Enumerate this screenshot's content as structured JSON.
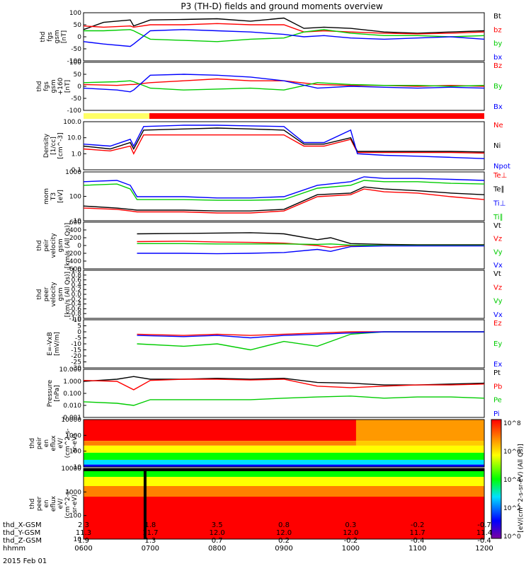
{
  "title": "P3 (TH-D) fields and ground moments overview",
  "colors": {
    "black": "#000000",
    "red": "#ff0000",
    "green": "#00cc00",
    "blue": "#0000ff",
    "yellow": "#ffff66",
    "axis": "#000000"
  },
  "chart_data": [
    {
      "type": "line",
      "id": "fgs",
      "ylabel": [
        "thd",
        "fgs",
        "gsm",
        "[nT]"
      ],
      "ylim": [
        -100,
        100
      ],
      "ticks": [
        "100",
        "50",
        "0",
        "-50",
        "-100"
      ],
      "series": [
        {
          "name": "Bt",
          "color": "#000000",
          "x": [
            0.0,
            0.3,
            0.7,
            0.75,
            1.0,
            1.5,
            2.0,
            2.5,
            3.0,
            3.3,
            3.6,
            4.0,
            4.5,
            5.0,
            5.5,
            6.0
          ],
          "y": [
            30,
            60,
            70,
            45,
            70,
            72,
            75,
            65,
            78,
            35,
            40,
            35,
            20,
            15,
            20,
            25
          ]
        },
        {
          "name": "bz",
          "color": "#ff0000",
          "x": [
            0.0,
            0.3,
            0.7,
            0.75,
            1.0,
            1.5,
            2.0,
            2.5,
            3.0,
            3.3,
            3.6,
            4.0,
            4.5,
            5.0,
            5.5,
            6.0
          ],
          "y": [
            45,
            40,
            45,
            40,
            50,
            50,
            55,
            50,
            50,
            20,
            25,
            20,
            15,
            12,
            15,
            20
          ]
        },
        {
          "name": "by",
          "color": "#00cc00",
          "x": [
            0.0,
            0.3,
            0.7,
            0.75,
            1.0,
            1.5,
            2.0,
            2.5,
            3.0,
            3.3,
            3.6,
            4.0,
            4.5,
            5.0,
            5.5,
            6.0
          ],
          "y": [
            25,
            25,
            30,
            25,
            -10,
            -15,
            -20,
            -10,
            -5,
            20,
            30,
            15,
            5,
            5,
            0,
            5
          ]
        },
        {
          "name": "bx",
          "color": "#0000ff",
          "x": [
            0.0,
            0.3,
            0.7,
            0.75,
            1.0,
            1.5,
            2.0,
            2.5,
            3.0,
            3.3,
            3.6,
            4.0,
            4.5,
            5.0,
            5.5,
            6.0
          ],
          "y": [
            -20,
            -30,
            -40,
            -30,
            25,
            30,
            25,
            20,
            10,
            0,
            5,
            -5,
            -10,
            -5,
            0,
            -10
          ]
        }
      ]
    },
    {
      "type": "line",
      "id": "fgs-lo",
      "ylabel": [
        "thd",
        "fgs",
        "gsm",
        "+160",
        "[nT]"
      ],
      "ylim": [
        -130,
        130
      ],
      "ticks": [
        "100",
        "50",
        "0",
        "-50",
        "-100"
      ],
      "series": [
        {
          "name": "Bz",
          "color": "#ff0000",
          "x": [
            0.0,
            0.5,
            0.7,
            0.75,
            1.0,
            1.5,
            2.0,
            2.5,
            3.0,
            3.5,
            4.0,
            4.5,
            5.0,
            5.5,
            6.0
          ],
          "y": [
            10,
            5,
            10,
            10,
            20,
            30,
            40,
            30,
            30,
            10,
            5,
            5,
            0,
            5,
            0
          ]
        },
        {
          "name": "By",
          "color": "#00cc00",
          "x": [
            0.0,
            0.5,
            0.7,
            0.75,
            1.0,
            1.5,
            2.0,
            2.5,
            3.0,
            3.5,
            4.0,
            4.5,
            5.0,
            5.5,
            6.0
          ],
          "y": [
            20,
            25,
            30,
            25,
            -10,
            -20,
            -15,
            -10,
            -20,
            20,
            10,
            5,
            5,
            0,
            5
          ]
        },
        {
          "name": "Bx",
          "color": "#0000ff",
          "x": [
            0.0,
            0.5,
            0.7,
            0.75,
            1.0,
            1.5,
            2.0,
            2.5,
            3.0,
            3.5,
            4.0,
            4.5,
            5.0,
            5.5,
            6.0
          ],
          "y": [
            -10,
            -20,
            -30,
            -20,
            60,
            65,
            60,
            50,
            30,
            -10,
            0,
            -5,
            -10,
            -5,
            -10
          ]
        }
      ]
    },
    {
      "type": "line",
      "id": "density",
      "scale": "log",
      "ylabel": [
        "Density",
        "[1/cc]",
        "[cm^-3]"
      ],
      "ylim": [
        0.1,
        100
      ],
      "ticks": [
        "100.0",
        "10.0",
        "1.0",
        "0.1"
      ],
      "series": [
        {
          "name": "Ne",
          "color": "#ff0000",
          "x": [
            0.0,
            0.4,
            0.7,
            0.75,
            0.9,
            1.5,
            2.0,
            2.5,
            3.0,
            3.3,
            3.6,
            4.0,
            4.1,
            4.5,
            5.0,
            5.5,
            6.0
          ],
          "y": [
            2,
            1.5,
            3,
            1,
            15,
            15,
            15,
            15,
            15,
            3,
            3,
            8,
            1.2,
            1.2,
            1.2,
            1.2,
            1.1
          ]
        },
        {
          "name": "Ni",
          "color": "#000000",
          "x": [
            0.0,
            0.4,
            0.7,
            0.75,
            0.9,
            1.5,
            2.0,
            2.5,
            3.0,
            3.3,
            3.6,
            4.0,
            4.1,
            4.5,
            5.0,
            5.5,
            6.0
          ],
          "y": [
            3,
            2,
            5,
            2,
            30,
            35,
            40,
            35,
            30,
            4,
            4,
            10,
            1.4,
            1.4,
            1.4,
            1.4,
            1.3
          ]
        },
        {
          "name": "Npot",
          "color": "#0000ff",
          "x": [
            0.0,
            0.4,
            0.7,
            0.75,
            0.9,
            1.5,
            2.0,
            2.5,
            3.0,
            3.3,
            3.6,
            4.0,
            4.1,
            4.5,
            5.0,
            5.5,
            6.0
          ],
          "y": [
            4,
            3,
            8,
            3,
            50,
            60,
            60,
            55,
            50,
            5,
            5,
            30,
            1.0,
            0.8,
            0.7,
            0.6,
            0.5
          ]
        }
      ]
    },
    {
      "type": "line",
      "id": "mom-temp",
      "scale": "log",
      "ylabel": [
        "mom",
        "T3",
        "[eV]"
      ],
      "ylim": [
        10,
        10000
      ],
      "ticks": [
        "1000",
        "100",
        "10"
      ],
      "series": [
        {
          "name": "Te⊥",
          "color": "#ff0000",
          "x": [
            0.0,
            0.5,
            0.7,
            0.8,
            1.5,
            2.0,
            2.5,
            3.0,
            3.5,
            4.0,
            4.2,
            4.5,
            5.0,
            5.5,
            6.0
          ],
          "y": [
            60,
            50,
            40,
            35,
            35,
            30,
            30,
            40,
            300,
            400,
            900,
            600,
            500,
            300,
            200
          ]
        },
        {
          "name": "Te∥",
          "color": "#000000",
          "x": [
            0.0,
            0.5,
            0.7,
            0.8,
            1.5,
            2.0,
            2.5,
            3.0,
            3.5,
            4.0,
            4.2,
            4.5,
            5.0,
            5.5,
            6.0
          ],
          "y": [
            80,
            60,
            50,
            45,
            45,
            40,
            40,
            50,
            400,
            500,
            1200,
            900,
            700,
            500,
            400
          ]
        },
        {
          "name": "Ti⊥",
          "color": "#0000ff",
          "x": [
            0.0,
            0.5,
            0.7,
            0.8,
            1.5,
            2.0,
            2.5,
            3.0,
            3.5,
            4.0,
            4.2,
            4.5,
            5.0,
            5.5,
            6.0
          ],
          "y": [
            2500,
            3000,
            1500,
            300,
            300,
            250,
            250,
            300,
            1500,
            2500,
            5000,
            4000,
            4000,
            3500,
            3000
          ]
        },
        {
          "name": "Ti∥",
          "color": "#00cc00",
          "x": [
            0.0,
            0.5,
            0.7,
            0.8,
            1.5,
            2.0,
            2.5,
            3.0,
            3.5,
            4.0,
            4.2,
            4.5,
            5.0,
            5.5,
            6.0
          ],
          "y": [
            1500,
            1800,
            900,
            200,
            200,
            180,
            180,
            200,
            1000,
            1500,
            3000,
            2500,
            2500,
            2000,
            1800
          ]
        }
      ]
    },
    {
      "type": "line",
      "id": "peir-vel",
      "ylabel": [
        "thd",
        "peir",
        "velocity",
        "gsm",
        "[km/s (All Qs)]"
      ],
      "ylim": [
        -600,
        600
      ],
      "ticks": [
        "600",
        "400",
        "200",
        "0",
        "-200",
        "-400",
        "-600"
      ],
      "series": [
        {
          "name": "Vt",
          "color": "#000000",
          "x": [
            0.8,
            1.5,
            2.0,
            2.5,
            3.0,
            3.5,
            3.7,
            4.0,
            4.5,
            5.0,
            5.5,
            6.0
          ],
          "y": [
            300,
            310,
            320,
            330,
            300,
            150,
            200,
            50,
            30,
            20,
            20,
            20
          ]
        },
        {
          "name": "Vz",
          "color": "#ff0000",
          "x": [
            0.8,
            1.5,
            2.0,
            2.5,
            3.0,
            3.5,
            3.7,
            4.0,
            4.5,
            5.0,
            5.5,
            6.0
          ],
          "y": [
            100,
            110,
            90,
            80,
            60,
            0,
            -50,
            0,
            0,
            0,
            0,
            0
          ]
        },
        {
          "name": "Vy",
          "color": "#00cc00",
          "x": [
            0.8,
            1.5,
            2.0,
            2.5,
            3.0,
            3.5,
            3.7,
            4.0,
            4.5,
            5.0,
            5.5,
            6.0
          ],
          "y": [
            50,
            50,
            40,
            40,
            40,
            30,
            40,
            10,
            0,
            0,
            0,
            0
          ]
        },
        {
          "name": "Vx",
          "color": "#0000ff",
          "x": [
            0.8,
            1.5,
            2.0,
            2.5,
            3.0,
            3.5,
            3.7,
            4.0,
            4.5,
            5.0,
            5.5,
            6.0
          ],
          "y": [
            -200,
            -200,
            -210,
            -200,
            -180,
            -100,
            -150,
            -30,
            -10,
            -10,
            -10,
            -10
          ]
        }
      ]
    },
    {
      "type": "line",
      "id": "peer-vel",
      "ylabel": [
        "thd",
        "peer",
        "velocity",
        "gsm",
        "[km/s (All Qs)]"
      ],
      "ylim": [
        -1.0,
        1.0
      ],
      "ticks": [
        "1.0",
        "0.8",
        "0.6",
        "0.4",
        "0.2",
        "0.0",
        "-0.2",
        "-0.4",
        "-0.6",
        "-0.8",
        "-1.0"
      ],
      "series": [
        {
          "name": "Vt",
          "color": "#000000",
          "x": [],
          "y": []
        },
        {
          "name": "Vz",
          "color": "#ff0000",
          "x": [],
          "y": []
        },
        {
          "name": "Vy",
          "color": "#00cc00",
          "x": [],
          "y": []
        },
        {
          "name": "Vx",
          "color": "#0000ff",
          "x": [],
          "y": []
        }
      ]
    },
    {
      "type": "line",
      "id": "efield",
      "ylabel": [
        "E=-VxB",
        "[mV/m]"
      ],
      "ylim": [
        -30,
        10
      ],
      "ticks": [
        "10",
        "5",
        "0",
        "-5",
        "-10",
        "-15",
        "-20",
        "-25",
        "-30"
      ],
      "series": [
        {
          "name": "Ez",
          "color": "#ff0000",
          "x": [
            0.8,
            1.5,
            2.0,
            2.5,
            3.0,
            3.5,
            4.0,
            4.5,
            5.0,
            5.5,
            6.0
          ],
          "y": [
            -2,
            -3,
            -2,
            -3,
            -2,
            -1,
            0,
            0,
            0,
            0,
            0
          ]
        },
        {
          "name": "Ey",
          "color": "#00cc00",
          "x": [
            0.8,
            1.5,
            2.0,
            2.5,
            3.0,
            3.5,
            4.0,
            4.5,
            5.0,
            5.5,
            6.0
          ],
          "y": [
            -10,
            -12,
            -10,
            -15,
            -8,
            -12,
            -2,
            0,
            0,
            0,
            0
          ]
        },
        {
          "name": "Ex",
          "color": "#0000ff",
          "x": [
            0.8,
            1.5,
            2.0,
            2.5,
            3.0,
            3.5,
            4.0,
            4.5,
            5.0,
            5.5,
            6.0
          ],
          "y": [
            -3,
            -4,
            -3,
            -5,
            -3,
            -2,
            -1,
            0,
            0,
            0,
            0
          ]
        }
      ]
    },
    {
      "type": "line",
      "id": "pressure",
      "scale": "log",
      "ylabel": [
        "Pressure",
        "[nPa]"
      ],
      "ylim": [
        0.001,
        10
      ],
      "ticks": [
        "10.000",
        "1.000",
        "0.100",
        "0.010",
        "0.001"
      ],
      "series": [
        {
          "name": "Pt",
          "color": "#000000",
          "x": [
            0.0,
            0.5,
            0.75,
            1.0,
            1.5,
            2.0,
            2.5,
            3.0,
            3.5,
            4.0,
            4.5,
            5.0,
            5.5,
            6.0
          ],
          "y": [
            1.0,
            1.5,
            2.5,
            1.5,
            1.5,
            1.8,
            1.5,
            1.8,
            0.8,
            0.7,
            0.5,
            0.5,
            0.6,
            0.7
          ]
        },
        {
          "name": "Pb",
          "color": "#ff0000",
          "x": [
            0.0,
            0.5,
            0.75,
            1.0,
            1.5,
            2.0,
            2.5,
            3.0,
            3.5,
            4.0,
            4.5,
            5.0,
            5.5,
            6.0
          ],
          "y": [
            1.2,
            1.0,
            0.2,
            1.2,
            1.5,
            1.5,
            1.3,
            1.5,
            0.4,
            0.3,
            0.4,
            0.5,
            0.5,
            0.6
          ]
        },
        {
          "name": "Pe",
          "color": "#00cc00",
          "x": [
            0.0,
            0.5,
            0.75,
            1.0,
            1.5,
            2.0,
            2.5,
            3.0,
            3.5,
            4.0,
            4.5,
            5.0,
            5.5,
            6.0
          ],
          "y": [
            0.02,
            0.015,
            0.01,
            0.03,
            0.03,
            0.03,
            0.03,
            0.04,
            0.05,
            0.06,
            0.04,
            0.05,
            0.05,
            0.04
          ]
        },
        {
          "name": "Pi",
          "color": "#0000ff",
          "x": [],
          "y": []
        }
      ]
    },
    {
      "type": "heatmap",
      "id": "peir-en",
      "ylabel": [
        "thd",
        "peir",
        "en",
        "eflux",
        "eV/",
        "(cm^2-s-",
        "sr-eV)"
      ],
      "ylim": [
        5,
        20000
      ],
      "ticks": [
        "10000",
        "1000",
        "100",
        "10"
      ]
    },
    {
      "type": "heatmap",
      "id": "peer-en",
      "ylabel": [
        "thd",
        "peer",
        "en",
        "eflux",
        "eV/",
        "(cm^2-s-",
        "sr-eV)"
      ],
      "ylim": [
        5,
        20000
      ],
      "ticks": [
        "10000",
        "1000",
        "100",
        "10"
      ]
    }
  ],
  "colorbar": {
    "label": "[eV/(cm^2-s-sr-eV) (All Qs)]",
    "ticks": [
      "10^8",
      "10^6",
      "10^4",
      "10^2",
      "10^0"
    ]
  },
  "xaxis": {
    "rows": [
      {
        "label": "thd_X-GSM",
        "values": [
          "2.3",
          "1.8",
          "3.5",
          "0.8",
          "0.3",
          "-0.2",
          "-0.7"
        ]
      },
      {
        "label": "thd_Y-GSM",
        "values": [
          "11.3",
          "11.7",
          "12.0",
          "12.0",
          "12.0",
          "11.7",
          "11.4"
        ]
      },
      {
        "label": "thd_Z-GSM",
        "values": [
          "1.9",
          "1.3",
          "0.7",
          "0.2",
          "-0.2",
          "-0.4",
          "-0.4"
        ]
      },
      {
        "label": "hhmm",
        "values": [
          "0600",
          "0700",
          "0800",
          "0900",
          "1000",
          "1100",
          "1200"
        ]
      }
    ],
    "date": "2015 Feb 01"
  }
}
